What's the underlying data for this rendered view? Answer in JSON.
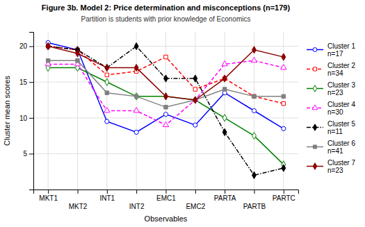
{
  "chart_data": {
    "type": "line",
    "title": "Figure 3b. Model 2: Price determination and misconceptions (n=179)",
    "subtitle": "Partition is students with prior knowledge of Economics",
    "xlabel": "Observables",
    "ylabel": "Cluster mean scores",
    "categories": [
      "MKT1",
      "MKT2",
      "INT1",
      "INT2",
      "EMC1",
      "EMC2",
      "PARTA",
      "PARTB",
      "PARTC"
    ],
    "ylim": [
      0,
      22
    ],
    "yticks": [
      5,
      10,
      15,
      20
    ],
    "grid": true,
    "legend": "right",
    "series": [
      {
        "name": "Cluster 1\nn=17",
        "color": "blue",
        "line_style": "solid",
        "marker": "circle-open",
        "values": [
          20.5,
          19.5,
          9.5,
          8.0,
          10.5,
          9.0,
          13.5,
          11.0,
          8.5
        ]
      },
      {
        "name": "Cluster 2\nn=34",
        "color": "red",
        "line_style": "dashed",
        "marker": "square-open",
        "values": [
          20.0,
          19.5,
          16.0,
          16.5,
          18.5,
          14.0,
          15.5,
          13.0,
          12.0
        ]
      },
      {
        "name": "Cluster 3\nn=23",
        "color": "green",
        "line_style": "solid",
        "marker": "diamond-open",
        "values": [
          17.0,
          17.0,
          15.0,
          13.0,
          13.0,
          12.5,
          10.0,
          7.5,
          3.5
        ]
      },
      {
        "name": "Cluster 4\nn=30",
        "color": "magenta",
        "line_style": "dashed",
        "marker": "triangle-open",
        "values": [
          17.5,
          17.5,
          11.0,
          11.0,
          9.0,
          12.5,
          17.5,
          18.0,
          17.0
        ]
      },
      {
        "name": "Cluster 5\nn=11",
        "color": "black",
        "line_style": "dashdot",
        "marker": "diamond",
        "values": [
          20.0,
          19.5,
          17.0,
          20.0,
          15.5,
          15.5,
          8.0,
          2.0,
          3.0
        ]
      },
      {
        "name": "Cluster 6\nn=41",
        "color": "gray",
        "line_style": "solid",
        "marker": "square",
        "values": [
          18.0,
          18.0,
          13.5,
          13.0,
          11.5,
          12.5,
          14.0,
          13.0,
          13.0
        ]
      },
      {
        "name": "Cluster 7\nn=23",
        "color": "darkred",
        "line_style": "solid",
        "marker": "diamond",
        "values": [
          20.0,
          19.0,
          17.0,
          17.0,
          13.0,
          12.5,
          15.5,
          19.5,
          18.5
        ]
      }
    ]
  }
}
